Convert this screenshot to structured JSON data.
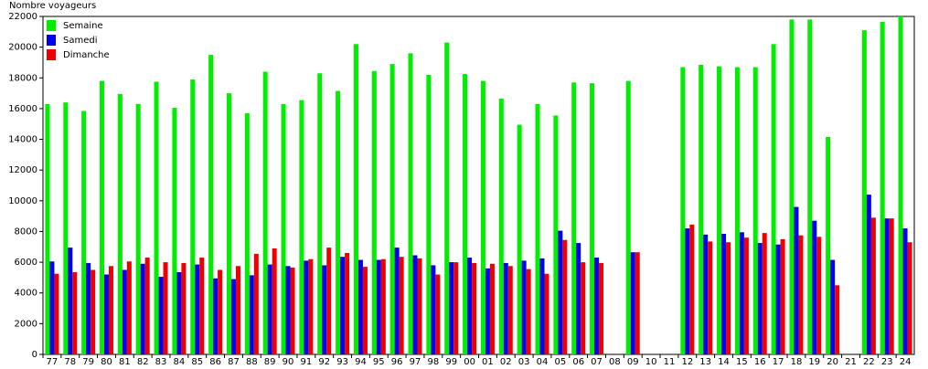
{
  "chart_data": {
    "type": "bar",
    "y_label": "Nombre voyageurs",
    "categories": [
      "77",
      "78",
      "79",
      "80",
      "81",
      "82",
      "83",
      "84",
      "85",
      "86",
      "87",
      "88",
      "89",
      "90",
      "91",
      "92",
      "93",
      "94",
      "95",
      "96",
      "97",
      "98",
      "99",
      "00",
      "01",
      "02",
      "03",
      "04",
      "05",
      "06",
      "07",
      "08",
      "09",
      "10",
      "11",
      "12",
      "13",
      "14",
      "15",
      "16",
      "17",
      "18",
      "19",
      "20",
      "21",
      "22",
      "23",
      "24"
    ],
    "series": [
      {
        "name": "Semaine",
        "color": "#00ee00",
        "values": [
          16300,
          16400,
          15850,
          17800,
          16950,
          16300,
          17750,
          16050,
          17900,
          19500,
          17000,
          15700,
          18400,
          16300,
          16550,
          18300,
          17150,
          20200,
          18450,
          18900,
          19600,
          18200,
          20300,
          18250,
          17800,
          16650,
          14950,
          16300,
          15550,
          17700,
          17650,
          null,
          17800,
          null,
          null,
          18700,
          18850,
          18750,
          18700,
          18700,
          20200,
          21800,
          21800,
          14150,
          null,
          21100,
          21650,
          22000
        ]
      },
      {
        "name": "Samedi",
        "color": "#0000ee",
        "values": [
          6050,
          6950,
          5950,
          5200,
          5500,
          5900,
          5050,
          5350,
          5850,
          4950,
          4900,
          5150,
          5850,
          5750,
          6100,
          5800,
          6350,
          6150,
          6150,
          6950,
          6450,
          5800,
          6000,
          6300,
          5600,
          5950,
          6100,
          6250,
          8050,
          7250,
          6300,
          null,
          6650,
          null,
          null,
          8200,
          7800,
          7850,
          7950,
          7250,
          7150,
          9600,
          8700,
          6150,
          null,
          10400,
          8850,
          8200
        ]
      },
      {
        "name": "Dimanche",
        "color": "#ee0000",
        "values": [
          5250,
          5350,
          5500,
          5750,
          6050,
          6300,
          6000,
          5950,
          6300,
          5500,
          5750,
          6550,
          6900,
          5650,
          6200,
          6950,
          6600,
          5700,
          6200,
          6350,
          6250,
          5200,
          6000,
          5950,
          5900,
          5750,
          5550,
          5250,
          7450,
          6000,
          5950,
          null,
          6650,
          null,
          null,
          8450,
          7350,
          7300,
          7600,
          7900,
          7500,
          7750,
          7650,
          4500,
          null,
          8900,
          8850,
          7300
        ]
      }
    ],
    "ylim": [
      0,
      22000
    ],
    "yticks": [
      0,
      2000,
      4000,
      6000,
      8000,
      10000,
      12000,
      14000,
      16000,
      18000,
      20000,
      22000
    ],
    "grid": false,
    "legend": "top-left"
  }
}
